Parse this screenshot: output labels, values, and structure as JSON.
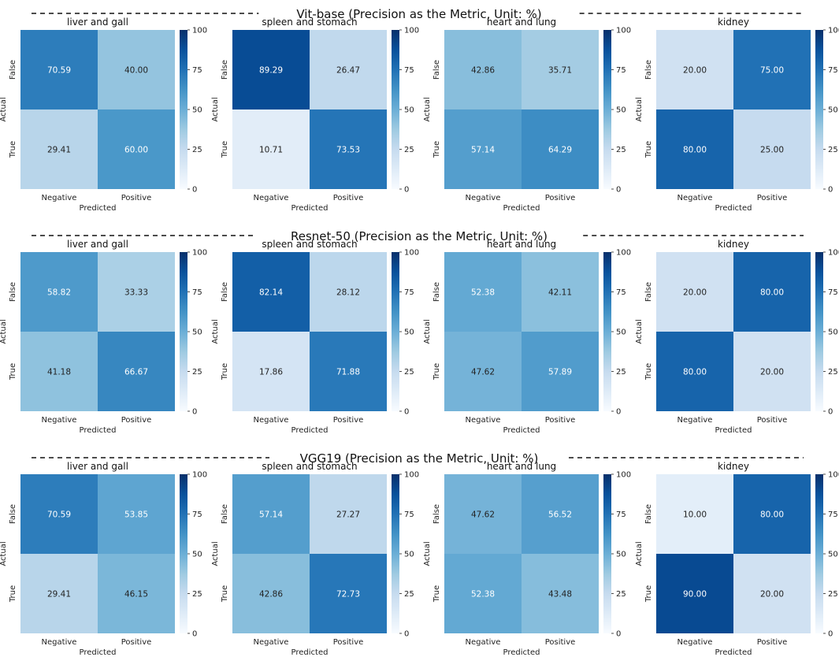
{
  "chart_data": {
    "type": "heatmap",
    "x_label": "Predicted",
    "y_label": "Actual",
    "x_ticks": [
      "Negative",
      "Positive"
    ],
    "y_ticks": [
      "False",
      "True"
    ],
    "colorbar": {
      "min": 0,
      "max": 100,
      "ticks": [
        "0",
        "25",
        "50",
        "75",
        "100"
      ],
      "colormap": "Blues"
    },
    "colors": {
      "light": "#f7fbff",
      "dark": "#08306b"
    },
    "rows": [
      {
        "title": "Vit-base (Precision as the Metric, Unit: %)",
        "panels": [
          {
            "title": "liver and gall",
            "values": [
              [
                70.59,
                40.0
              ],
              [
                29.41,
                60.0
              ]
            ]
          },
          {
            "title": "spleen and stomach",
            "values": [
              [
                89.29,
                26.47
              ],
              [
                10.71,
                73.53
              ]
            ]
          },
          {
            "title": "heart and lung",
            "values": [
              [
                42.86,
                35.71
              ],
              [
                57.14,
                64.29
              ]
            ]
          },
          {
            "title": "kidney",
            "values": [
              [
                20.0,
                75.0
              ],
              [
                80.0,
                25.0
              ]
            ]
          }
        ]
      },
      {
        "title": "Resnet-50 (Precision as the Metric, Unit: %)",
        "panels": [
          {
            "title": "liver and gall",
            "values": [
              [
                58.82,
                33.33
              ],
              [
                41.18,
                66.67
              ]
            ]
          },
          {
            "title": "spleen and stomach",
            "values": [
              [
                82.14,
                28.12
              ],
              [
                17.86,
                71.88
              ]
            ]
          },
          {
            "title": "heart and lung",
            "values": [
              [
                52.38,
                42.11
              ],
              [
                47.62,
                57.89
              ]
            ]
          },
          {
            "title": "kidney",
            "values": [
              [
                20.0,
                80.0
              ],
              [
                80.0,
                20.0
              ]
            ]
          }
        ]
      },
      {
        "title": "VGG19 (Precision as the Metric, Unit: %)",
        "panels": [
          {
            "title": "liver and gall",
            "values": [
              [
                70.59,
                53.85
              ],
              [
                29.41,
                46.15
              ]
            ]
          },
          {
            "title": "spleen and stomach",
            "values": [
              [
                57.14,
                27.27
              ],
              [
                42.86,
                72.73
              ]
            ]
          },
          {
            "title": "heart and lung",
            "values": [
              [
                47.62,
                56.52
              ],
              [
                52.38,
                43.48
              ]
            ]
          },
          {
            "title": "kidney",
            "values": [
              [
                10.0,
                80.0
              ],
              [
                90.0,
                20.0
              ]
            ]
          }
        ]
      }
    ]
  }
}
